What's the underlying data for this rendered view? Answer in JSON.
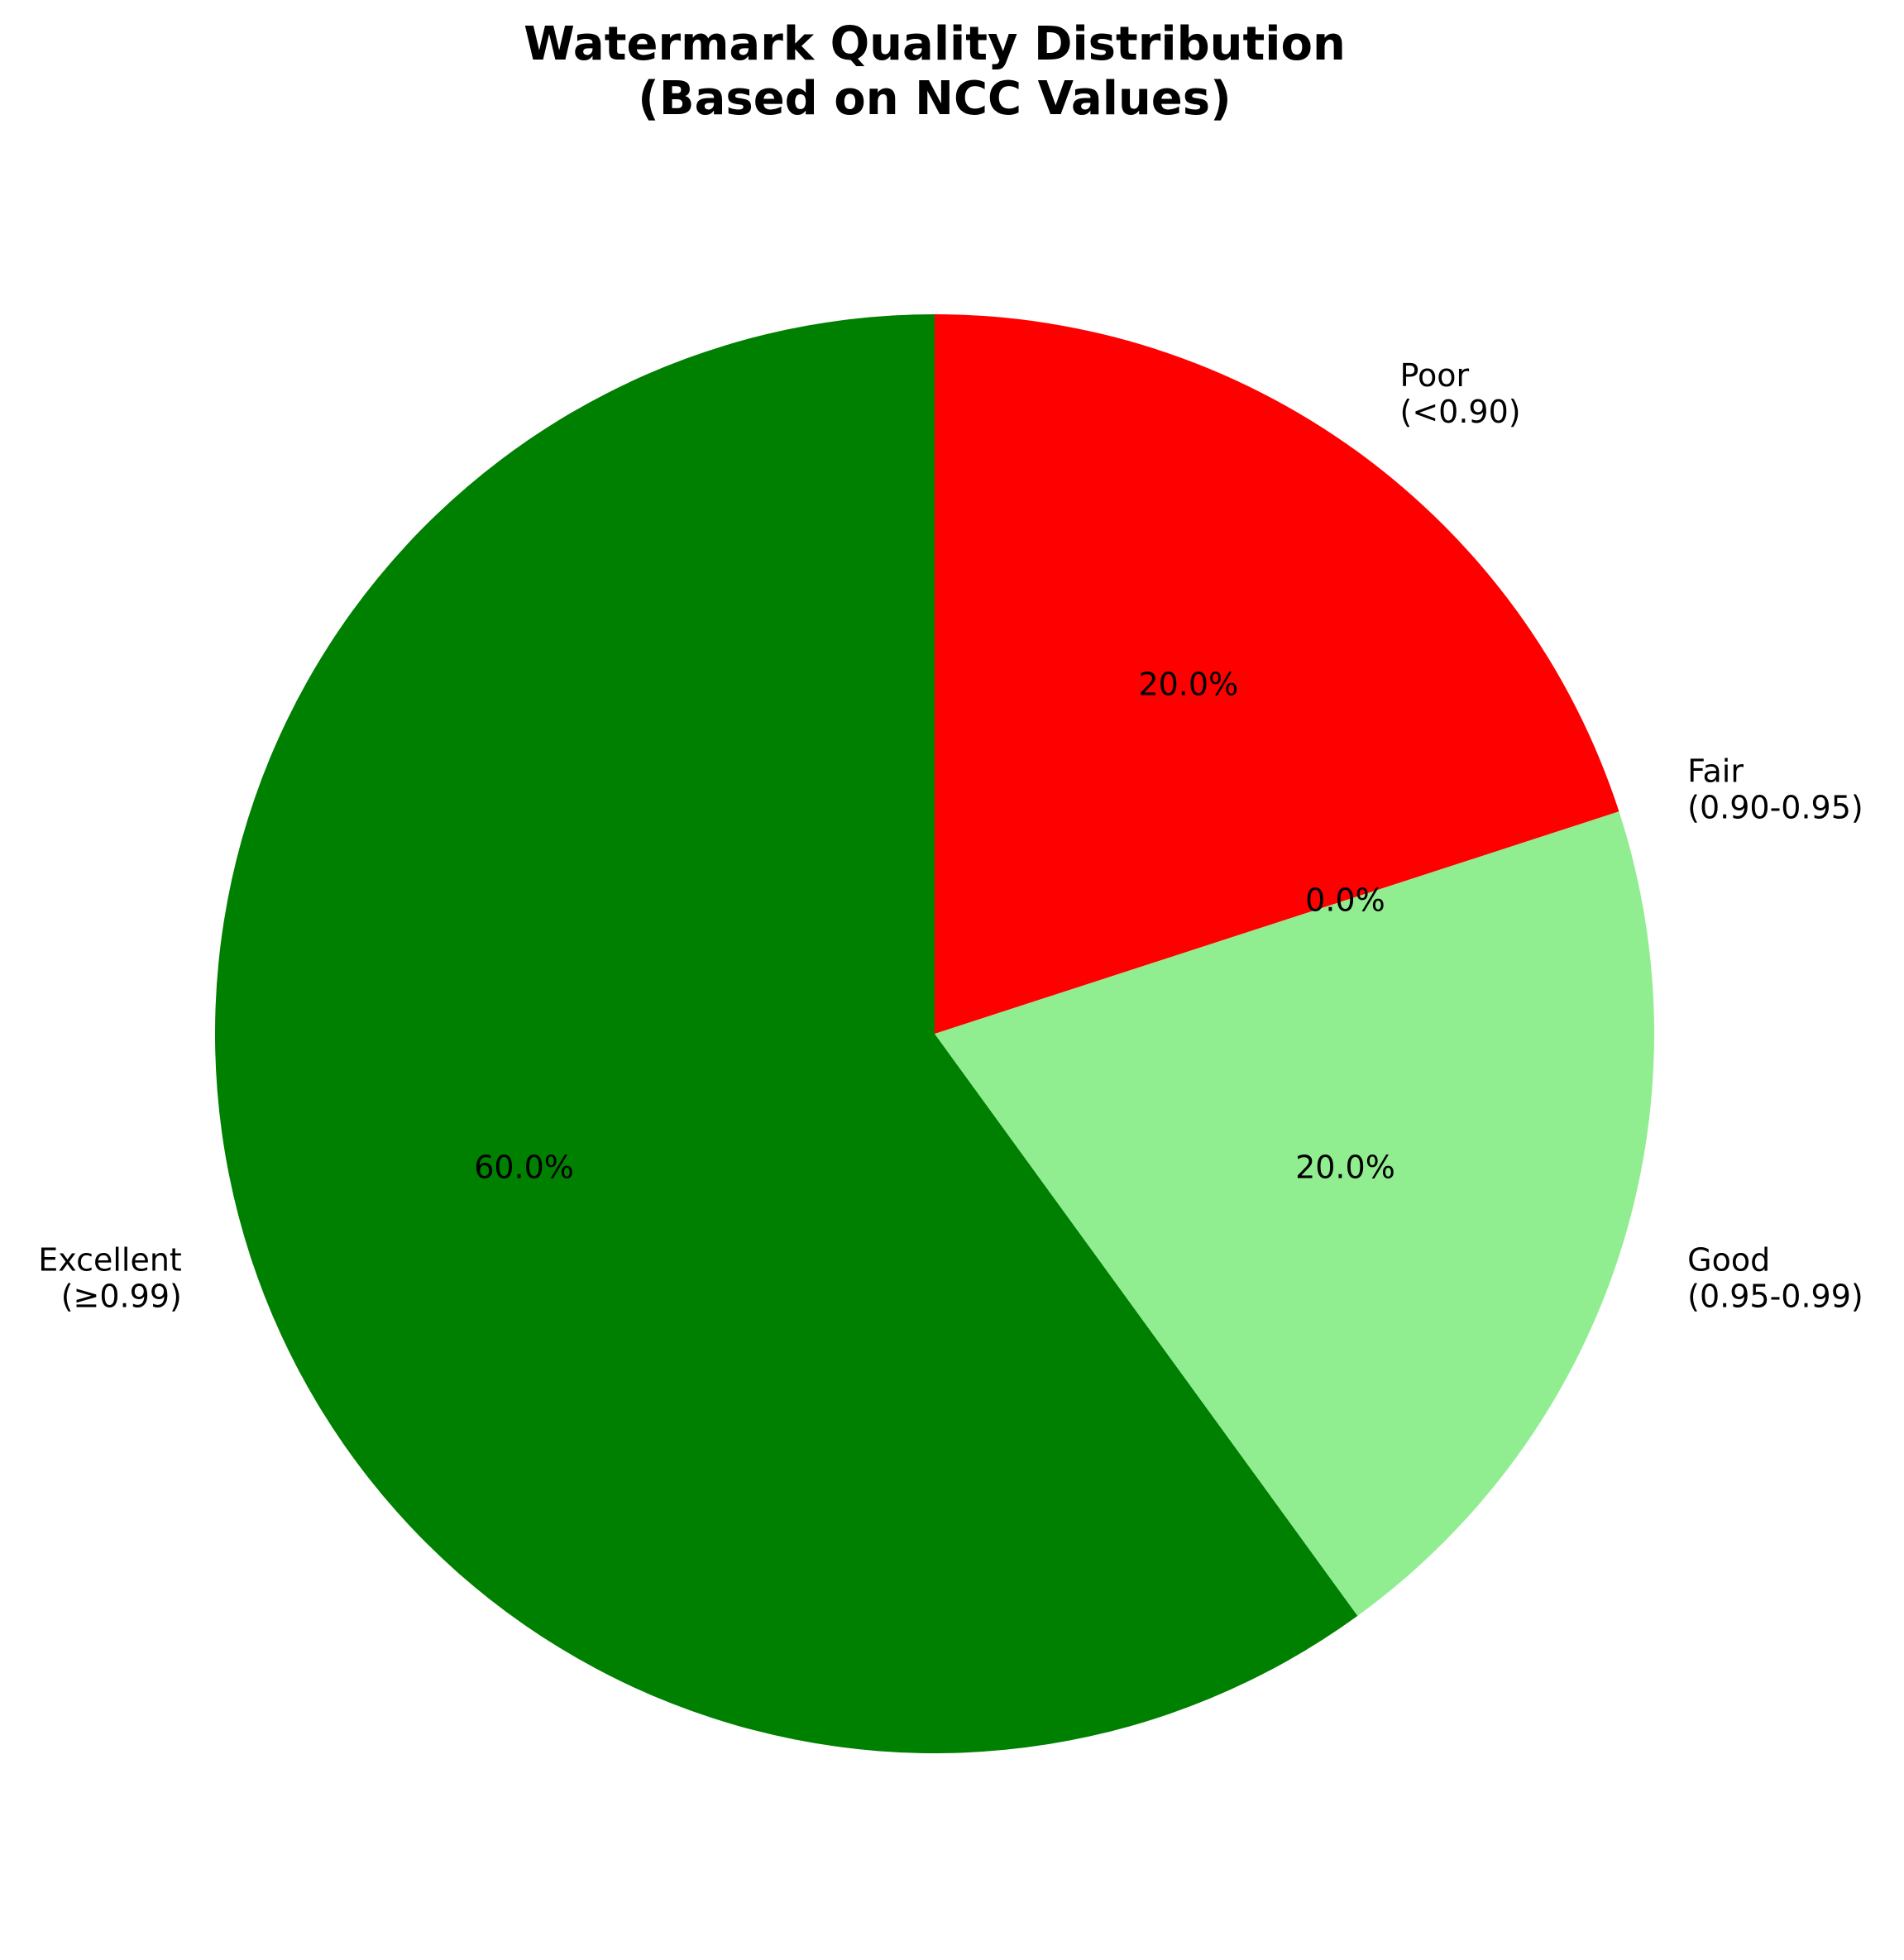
{
  "chart_data": {
    "type": "pie",
    "title": "Watermark Quality Distribution",
    "subtitle": "(Based on NCC Values)",
    "slices": [
      {
        "category": "Excellent",
        "range": "(≥0.99)",
        "value": 60.0,
        "label": "60.0%",
        "color": "#008000"
      },
      {
        "category": "Good",
        "range": "(0.95-0.99)",
        "value": 20.0,
        "label": "20.0%",
        "color": "#90EE90"
      },
      {
        "category": "Fair",
        "range": "(0.90-0.95)",
        "value": 0.0,
        "label": "0.0%",
        "color": "#FFA500"
      },
      {
        "category": "Poor",
        "range": "(<0.90)",
        "value": 20.0,
        "label": "20.0%",
        "color": "#FF0000"
      }
    ]
  }
}
